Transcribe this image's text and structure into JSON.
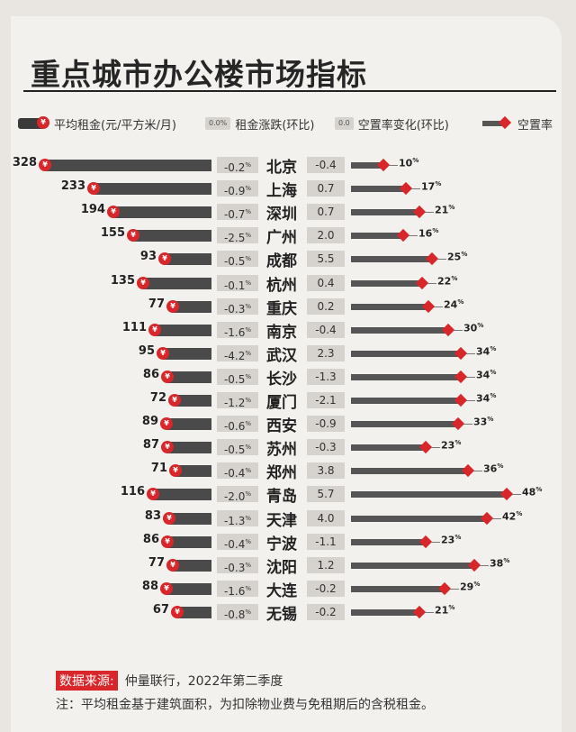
{
  "title": "重点城市办公楼市场指标",
  "legend": {
    "rent": "平均租金(元/平方米/月)",
    "rent_change": "租金涨跌(环比)",
    "rent_change_sample": "0.0%",
    "vacancy_change": "空置率变化(环比)",
    "vacancy_change_sample": "0.0",
    "vacancy": "空置率",
    "yen": "¥"
  },
  "colors": {
    "accent": "#d9262a",
    "bar": "#4a4a4a",
    "box": "#d6d3ce"
  },
  "chart_data": {
    "type": "bar",
    "categories": [
      "北京",
      "上海",
      "深圳",
      "广州",
      "成都",
      "杭州",
      "重庆",
      "南京",
      "武汉",
      "长沙",
      "厦门",
      "西安",
      "苏州",
      "郑州",
      "青岛",
      "天津",
      "宁波",
      "沈阳",
      "大连",
      "无锡"
    ],
    "series": [
      {
        "name": "平均租金(元/平方米/月)",
        "values": [
          328,
          233,
          194,
          155,
          93,
          135,
          77,
          111,
          95,
          86,
          72,
          89,
          87,
          71,
          116,
          83,
          86,
          77,
          88,
          67
        ]
      },
      {
        "name": "租金涨跌(环比)",
        "values": [
          "-0.2",
          "-0.9",
          "-0.7",
          "-2.5",
          "-0.5",
          "-0.1",
          "-0.3",
          "-1.6",
          "-4.2",
          "-0.5",
          "-1.2",
          "-0.6",
          "-0.5",
          "-0.4",
          "-2.0",
          "-1.3",
          "-0.4",
          "-0.3",
          "-1.6",
          "-0.8"
        ]
      },
      {
        "name": "空置率变化(环比)",
        "values": [
          "-0.4",
          "0.7",
          "0.7",
          "2.0",
          "5.5",
          "0.4",
          "0.2",
          "-0.4",
          "2.3",
          "-1.3",
          "-2.1",
          "-0.9",
          "-0.3",
          "3.8",
          "5.7",
          "4.0",
          "-1.1",
          "1.2",
          "-0.2",
          "-0.2"
        ]
      },
      {
        "name": "空置率",
        "values": [
          10,
          17,
          21,
          16,
          25,
          22,
          24,
          30,
          34,
          34,
          34,
          33,
          23,
          36,
          48,
          42,
          23,
          38,
          29,
          21
        ]
      }
    ],
    "units": {
      "rent_change": "%",
      "vacancy": "%"
    }
  },
  "source": {
    "label": "数据来源:",
    "text": "仲量联行，2022年第二季度"
  },
  "note": "注：平均租金基于建筑面积，为扣除物业费与免租期后的含税租金。"
}
